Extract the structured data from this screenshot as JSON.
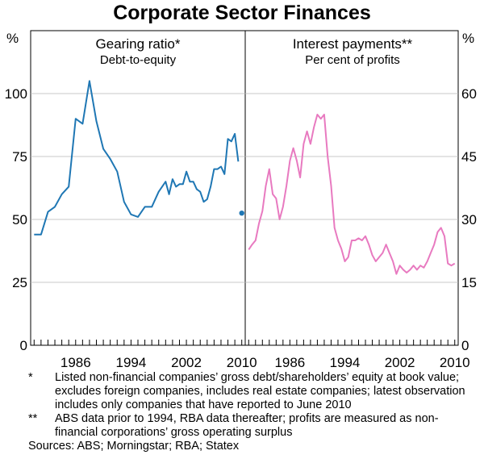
{
  "title": "Corporate Sector Finances",
  "colors": {
    "gearing": "#1f77b4",
    "interest": "#e87ac0"
  },
  "notes": [
    {
      "marker": "*",
      "text": "Listed non-financial companies’ gross debt/shareholders’ equity at book value; excludes foreign companies, includes real estate companies; latest observation includes only companies that have reported to June 2010"
    },
    {
      "marker": "**",
      "text": "ABS data prior to 1994, RBA data thereafter; profits are measured as non-financial corporations’ gross operating surplus"
    }
  ],
  "sources": "Sources: ABS; Morningstar; RBA; Statex",
  "chart_data": [
    {
      "type": "line",
      "title": "Gearing ratio*",
      "subtitle": "Debt-to-equity",
      "unit": "%",
      "ylim": [
        0,
        125
      ],
      "yticks": [
        "0",
        "25",
        "50",
        "75",
        "100"
      ],
      "xlim": [
        1979.5,
        2010.5
      ],
      "xticks": [
        "1986",
        "1994",
        "2002",
        "2010"
      ],
      "series": [
        {
          "x": [
            1980,
            1981,
            1982,
            1983,
            1984,
            1985,
            1986,
            1987,
            1988,
            1989,
            1990,
            1991,
            1992,
            1993,
            1994,
            1995,
            1996,
            1997,
            1998,
            1999,
            1999.5,
            2000,
            2000.5,
            2001,
            2001.5,
            2002,
            2002.5,
            2003,
            2003.5,
            2004,
            2004.5,
            2005,
            2005.5,
            2006,
            2006.5,
            2007,
            2007.5,
            2008,
            2008.5,
            2009,
            2009.5
          ],
          "y": [
            44,
            44,
            53,
            55,
            60,
            63,
            90,
            88,
            105,
            89,
            78,
            74,
            69,
            57,
            52,
            51,
            55,
            55,
            61,
            65,
            60,
            66,
            63,
            64,
            64,
            69,
            65,
            65,
            62,
            61,
            57,
            58,
            63,
            70,
            70,
            71,
            68,
            82,
            81,
            84,
            73
          ]
        }
      ],
      "latest_point": {
        "x": 2010,
        "y": 52.5
      }
    },
    {
      "type": "line",
      "title": "Interest payments**",
      "subtitle": "Per cent of profits",
      "unit": "%",
      "ylim": [
        0,
        75
      ],
      "yticks": [
        "0",
        "15",
        "30",
        "45",
        "60"
      ],
      "xlim": [
        1979.5,
        2010.5
      ],
      "xticks": [
        "1986",
        "1994",
        "2002",
        "2010"
      ],
      "series": [
        {
          "x": [
            1980,
            1980.5,
            1981,
            1981.5,
            1982,
            1982.5,
            1983,
            1983.5,
            1984,
            1984.5,
            1985,
            1985.5,
            1986,
            1986.5,
            1987,
            1987.5,
            1988,
            1988.5,
            1989,
            1989.5,
            1990,
            1990.5,
            1991,
            1991.5,
            1992,
            1992.5,
            1993,
            1993.5,
            1994,
            1994.5,
            1995,
            1995.5,
            1996,
            1996.5,
            1997,
            1997.5,
            1998,
            1998.5,
            1999,
            1999.5,
            2000,
            2000.5,
            2001,
            2001.5,
            2002,
            2002.5,
            2003,
            2003.5,
            2004,
            2004.5,
            2005,
            2005.5,
            2006,
            2006.5,
            2007,
            2007.5,
            2008,
            2008.5,
            2009,
            2009.5,
            2010
          ],
          "y": [
            22.8,
            24,
            25,
            29,
            32,
            38,
            42,
            36,
            35,
            30,
            33,
            38,
            44,
            47,
            44,
            40,
            48,
            51,
            48,
            52,
            55,
            54,
            55,
            45,
            38,
            28,
            25,
            23,
            20,
            21,
            25,
            25,
            25.5,
            25,
            26,
            24,
            21.5,
            20,
            21,
            22,
            24,
            22,
            20,
            17,
            19,
            18,
            17.3,
            18,
            19,
            18,
            19,
            18.5,
            20,
            22,
            24,
            27,
            28,
            26,
            19.5,
            19,
            19.5
          ]
        }
      ]
    }
  ]
}
